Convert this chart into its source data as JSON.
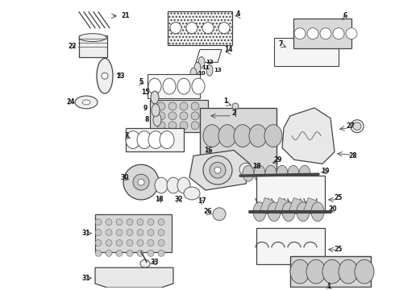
{
  "bg_color": "#ffffff",
  "line_color": "#444444",
  "text_color": "#111111",
  "fig_width": 4.9,
  "fig_height": 3.6,
  "dpi": 100,
  "label_fontsize": 5.5,
  "lw_main": 0.7,
  "parts_gray": "#d8d8d8",
  "parts_light": "#eeeeee",
  "parts_mid": "#c8c8c8"
}
